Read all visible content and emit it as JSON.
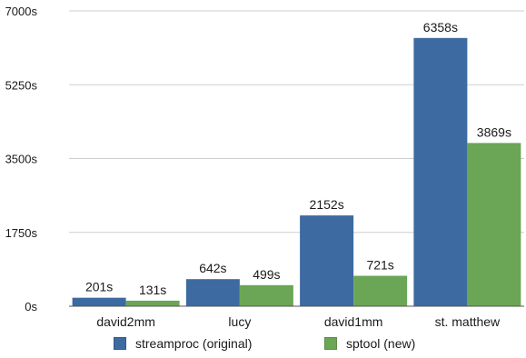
{
  "chart_data": {
    "type": "bar",
    "categories": [
      "david2mm",
      "lucy",
      "david1mm",
      "st. matthew"
    ],
    "series": [
      {
        "name": "streamproc (original)",
        "values": [
          201,
          642,
          2152,
          6358
        ],
        "labels": [
          "201s",
          "642s",
          "2152s",
          "6358s"
        ],
        "color": "#3d6aa0"
      },
      {
        "name": "sptool (new)",
        "values": [
          131,
          499,
          721,
          3869
        ],
        "labels": [
          "131s",
          "499s",
          "721s",
          "3869s"
        ],
        "color": "#6aa655"
      }
    ],
    "ylim": [
      0,
      7000
    ],
    "yticks": [
      0,
      1750,
      3500,
      5250,
      7000
    ],
    "ytick_labels": [
      "0s",
      "1750s",
      "3500s",
      "5250s",
      "7000s"
    ],
    "title": "",
    "xlabel": "",
    "ylabel": "",
    "grid": true,
    "legend_position": "bottom"
  }
}
